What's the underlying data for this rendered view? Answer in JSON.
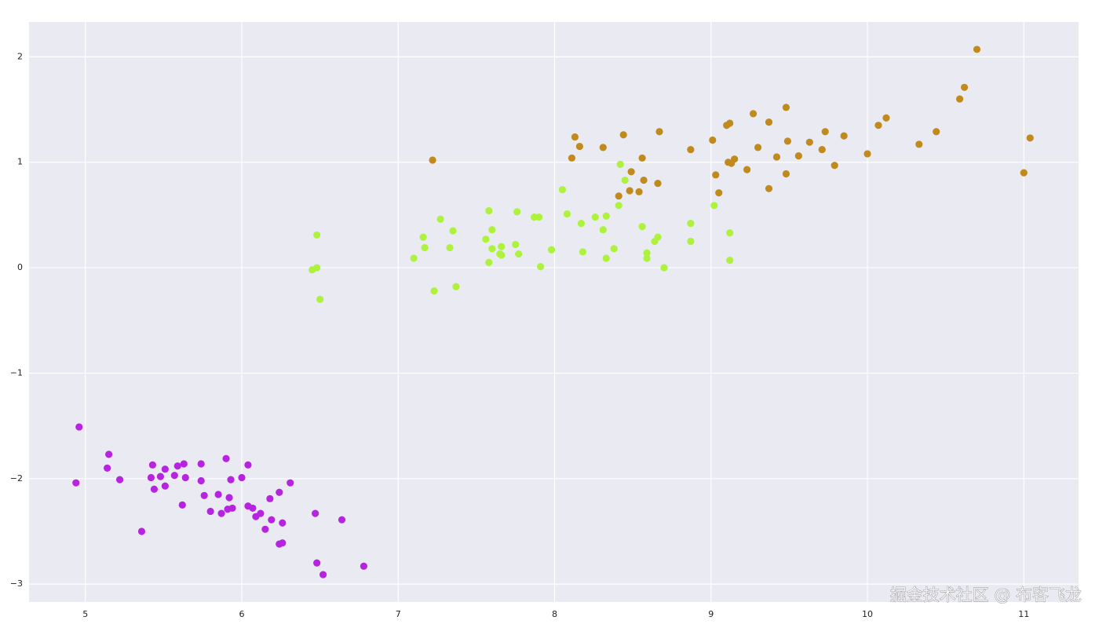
{
  "chart_data": {
    "type": "scatter",
    "xlim": [
      4.64,
      11.35
    ],
    "ylim": [
      -3.17,
      2.33
    ],
    "xticks": [
      5,
      6,
      7,
      8,
      9,
      10,
      11
    ],
    "yticks": [
      {
        "value": -3,
        "label": "−3"
      },
      {
        "value": -2,
        "label": "−2"
      },
      {
        "value": -1,
        "label": "−1"
      },
      0,
      1,
      2
    ],
    "grid": true,
    "series": [
      {
        "color": "#b624e0",
        "x": [
          4.96,
          4.94,
          5.15,
          5.14,
          5.22,
          5.36,
          5.43,
          5.42,
          5.44,
          5.48,
          5.51,
          5.51,
          5.57,
          5.59,
          5.63,
          5.64,
          5.62,
          5.74,
          5.74,
          5.76,
          5.8,
          5.85,
          5.87,
          5.9,
          5.91,
          5.92,
          5.93,
          5.94,
          6.0,
          6.04,
          6.04,
          6.07,
          6.09,
          6.12,
          6.15,
          6.18,
          6.19,
          6.24,
          6.24,
          6.26,
          6.26,
          6.31,
          6.47,
          6.48,
          6.52,
          6.64,
          6.78
        ],
        "y": [
          -1.51,
          -2.04,
          -1.77,
          -1.9,
          -2.01,
          -2.5,
          -1.87,
          -1.99,
          -2.1,
          -1.98,
          -1.91,
          -2.07,
          -1.97,
          -1.88,
          -1.86,
          -1.99,
          -2.25,
          -1.86,
          -2.02,
          -2.16,
          -2.31,
          -2.15,
          -2.33,
          -1.81,
          -2.29,
          -2.18,
          -2.01,
          -2.28,
          -1.99,
          -1.87,
          -2.26,
          -2.28,
          -2.36,
          -2.33,
          -2.48,
          -2.19,
          -2.39,
          -2.13,
          -2.62,
          -2.61,
          -2.42,
          -2.04,
          -2.33,
          -2.8,
          -2.91,
          -2.39,
          -2.83
        ]
      },
      {
        "color": "#adf23c",
        "x": [
          6.48,
          6.45,
          6.48,
          6.5,
          7.1,
          7.16,
          7.17,
          7.23,
          7.27,
          7.33,
          7.35,
          7.37,
          7.56,
          7.58,
          7.58,
          7.6,
          7.6,
          7.65,
          7.66,
          7.66,
          7.75,
          7.76,
          7.77,
          7.87,
          7.9,
          7.91,
          7.98,
          8.05,
          8.08,
          8.17,
          8.18,
          8.26,
          8.31,
          8.33,
          8.33,
          8.38,
          8.41,
          8.42,
          8.45,
          8.56,
          8.59,
          8.59,
          8.64,
          8.66,
          8.7,
          8.87,
          8.87,
          9.02,
          9.12,
          9.12
        ],
        "y": [
          0.31,
          -0.02,
          0.0,
          -0.3,
          0.09,
          0.29,
          0.19,
          -0.22,
          0.46,
          0.19,
          0.35,
          -0.18,
          0.27,
          0.54,
          0.05,
          0.18,
          0.36,
          0.13,
          0.2,
          0.12,
          0.22,
          0.53,
          0.13,
          0.48,
          0.48,
          0.01,
          0.17,
          0.74,
          0.51,
          0.42,
          0.15,
          0.48,
          0.36,
          0.49,
          0.09,
          0.18,
          0.59,
          0.98,
          0.83,
          0.39,
          0.14,
          0.09,
          0.25,
          0.29,
          0.0,
          0.42,
          0.25,
          0.59,
          0.33,
          0.07
        ]
      },
      {
        "color": "#c08a1c",
        "x": [
          7.22,
          8.11,
          8.13,
          8.16,
          8.31,
          8.41,
          8.44,
          8.48,
          8.49,
          8.54,
          8.56,
          8.57,
          8.66,
          8.67,
          8.87,
          9.01,
          9.03,
          9.05,
          9.1,
          9.12,
          9.11,
          9.13,
          9.15,
          9.23,
          9.27,
          9.3,
          9.37,
          9.37,
          9.42,
          9.48,
          9.49,
          9.48,
          9.56,
          9.63,
          9.71,
          9.73,
          9.79,
          9.85,
          10.0,
          10.07,
          10.12,
          10.33,
          10.44,
          10.59,
          10.62,
          10.7,
          11.0,
          11.04
        ],
        "y": [
          1.02,
          1.04,
          1.24,
          1.15,
          1.14,
          0.68,
          1.26,
          0.73,
          0.91,
          0.72,
          1.04,
          0.83,
          0.8,
          1.29,
          1.12,
          1.21,
          0.88,
          0.71,
          1.35,
          1.37,
          1.0,
          0.99,
          1.03,
          0.93,
          1.46,
          1.14,
          1.38,
          0.75,
          1.05,
          1.52,
          1.2,
          0.89,
          1.06,
          1.19,
          1.12,
          1.29,
          0.97,
          1.25,
          1.08,
          1.35,
          1.42,
          1.17,
          1.29,
          1.6,
          1.71,
          2.07,
          0.9,
          1.23
        ]
      }
    ],
    "watermark": "掘金技术社区 @ 布客飞龙"
  }
}
